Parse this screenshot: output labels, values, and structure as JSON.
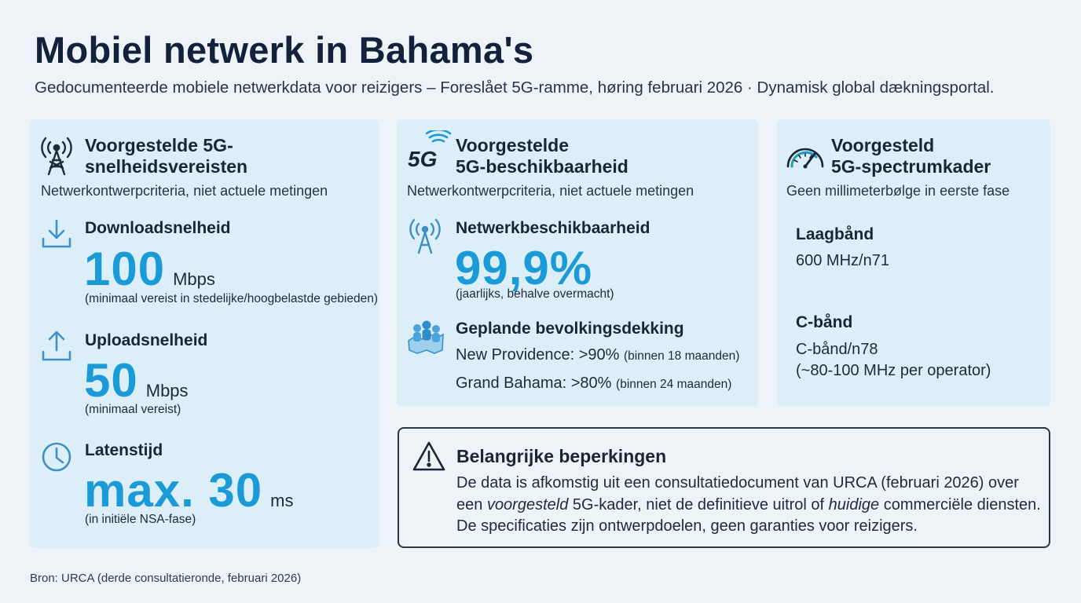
{
  "header": {
    "title": "Mobiel netwerk in Bahama's",
    "subtitle": "Gedocumenteerde mobiele netwerkdata voor reizigers – Foreslået 5G-ramme, høring februari 2026 · Dynamisk global dækningsportal."
  },
  "speed": {
    "title_line1": "Voorgestelde 5G-",
    "title_line2": "snelheidsvereisten",
    "subtitle": "Netwerkontwerpcriteria, niet actuele metingen",
    "download": {
      "label": "Downloadsnelheid",
      "value": "100",
      "unit": "Mbps",
      "note": "(minimaal vereist in stedelijke/hoogbelastde gebieden)"
    },
    "upload": {
      "label": "Uploadsnelheid",
      "value": "50",
      "unit": "Mbps",
      "note": "(minimaal vereist)"
    },
    "latency": {
      "label": "Latenstijd",
      "value": "max. 30",
      "unit": "ms",
      "note": "(in initiële NSA-fase)"
    }
  },
  "availability": {
    "title_line1": "Voorgestelde",
    "title_line2": "5G-beschikbaarheid",
    "subtitle": "Netwerkontwerpcriteria, niet actuele metingen",
    "network": {
      "label": "Netwerkbeschikbaarheid",
      "value": "99,9%",
      "note": "(jaarlijks, behalve overmacht)"
    },
    "coverage": {
      "label": "Geplande bevolkingsdekking",
      "np_main": "New Providence: >90%",
      "np_note": "(binnen 18 maanden)",
      "gb_main": "Grand Bahama: >80%",
      "gb_note": "(binnen 24 maanden)"
    }
  },
  "spectrum": {
    "title_line1": "Voorgesteld",
    "title_line2": "5G-spectrumkader",
    "subtitle": "Geen millimeterbølge in eerste fase",
    "low": {
      "label": "Laagbånd",
      "value": "600 MHz/n71"
    },
    "cband": {
      "label": "C-bånd",
      "value_line1": "C-bånd/n78",
      "value_line2": "(~80-100 MHz per operator)"
    }
  },
  "warning": {
    "title": "Belangrijke beperkingen",
    "line1": "De data is afkomstig uit een consultatiedocument van URCA (februari 2026) over",
    "line2_a": "een",
    "line2_em1": "voorgesteld",
    "line2_b": "5G-kader, niet de definitieve uitrol of",
    "line2_em2": "huidige",
    "line2_c": "commerciële diensten.",
    "line3": "De specificaties zijn ontwerpdoelen, geen garanties voor reizigers."
  },
  "five_g_logo": "5G",
  "source": "Bron: URCA (derde consultatieronde, februari 2026)",
  "colors": {
    "accent": "#1b9ad8",
    "card_bg": "#dceef8",
    "page_bg": "#eef3f8",
    "text_dark": "#13223a"
  },
  "icons": [
    "antenna-tower-icon",
    "download-icon",
    "upload-icon",
    "clock-icon",
    "five-g-icon",
    "signal-antenna-icon",
    "population-map-icon",
    "gauge-icon",
    "warning-icon"
  ]
}
